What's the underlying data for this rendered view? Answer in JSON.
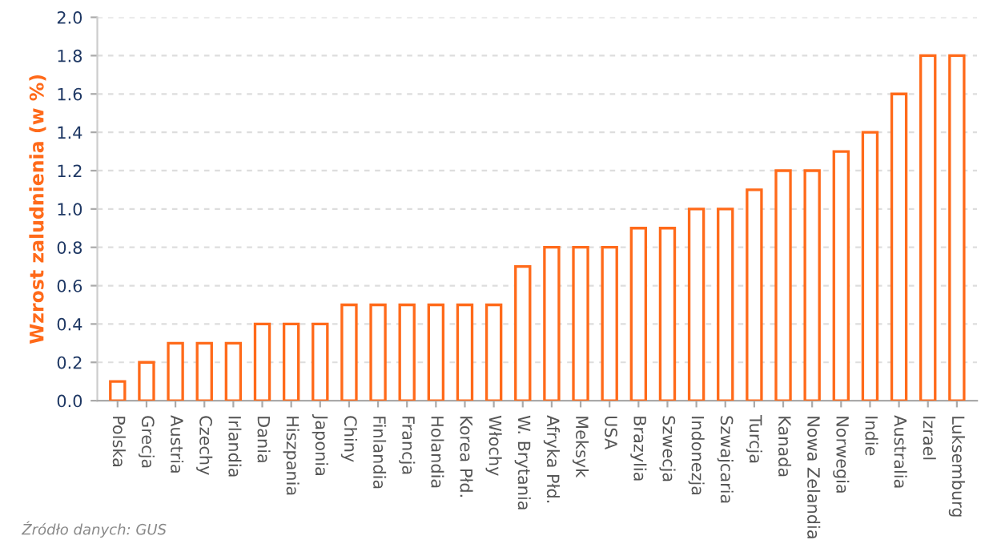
{
  "chart_data": {
    "type": "bar",
    "ylabel": "Wzrost zaludnienia (w %)",
    "categories": [
      "Polska",
      "Grecja",
      "Austria",
      "Czechy",
      "Irlandia",
      "Dania",
      "Hiszpania",
      "Japonia",
      "Chiny",
      "Finlandia",
      "Francja",
      "Holandia",
      "Korea Płd.",
      "Włochy",
      "W. Brytania",
      "Afryka Płd.",
      "Meksyk",
      "USA",
      "Brazylia",
      "Szwecja",
      "Indonezja",
      "Szwajcaria",
      "Turcja",
      "Kanada",
      "Nowa Zelandia",
      "Norwegia",
      "Indie",
      "Australia",
      "Izrael",
      "Luksemburg"
    ],
    "values": [
      0.1,
      0.2,
      0.3,
      0.3,
      0.3,
      0.4,
      0.4,
      0.4,
      0.5,
      0.5,
      0.5,
      0.5,
      0.5,
      0.5,
      0.7,
      0.8,
      0.8,
      0.8,
      0.9,
      0.9,
      1.0,
      1.0,
      1.1,
      1.2,
      1.2,
      1.3,
      1.4,
      1.6,
      1.8,
      1.8
    ],
    "color": "#ff6a1a",
    "ylim": [
      0,
      2.0
    ],
    "yticks": [
      {
        "value": 0,
        "label": "0.0"
      },
      {
        "value": 0.2,
        "label": "0.2"
      },
      {
        "value": 0.4,
        "label": "0.4"
      },
      {
        "value": 0.6,
        "label": "0.6"
      },
      {
        "value": 0.8,
        "label": "0.8"
      },
      {
        "value": 1.0,
        "label": "1.0"
      },
      {
        "value": 1.2,
        "label": "1.2"
      },
      {
        "value": 1.4,
        "label": "1.4"
      },
      {
        "value": 1.6,
        "label": "1.6"
      },
      {
        "value": 1.8,
        "label": "1.8"
      },
      {
        "value": 2.0,
        "label": "2.0"
      }
    ],
    "grid": "y",
    "annotations": [
      "Źródło danych: GUS"
    ]
  }
}
